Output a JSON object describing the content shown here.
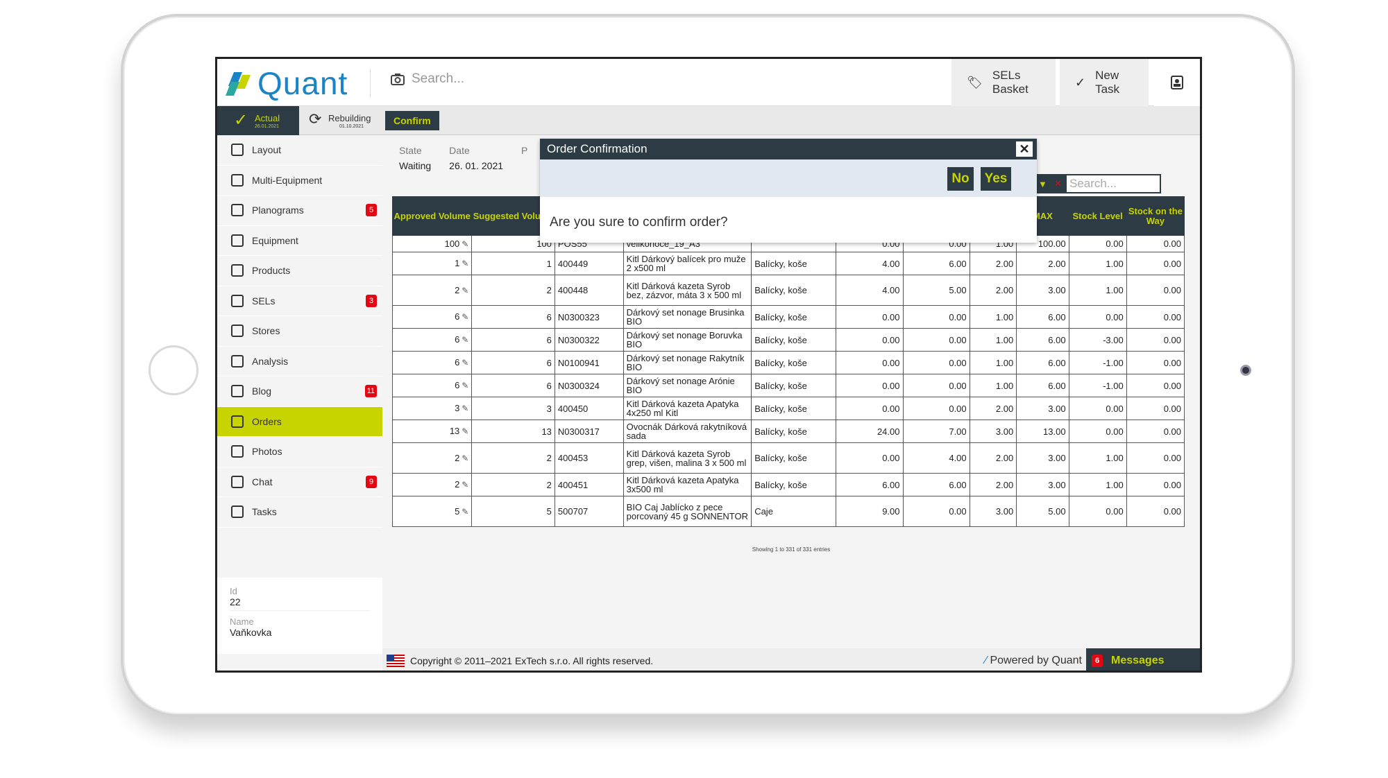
{
  "header": {
    "brand": "Quant",
    "search_placeholder": "Search...",
    "sels_basket": "SELs Basket",
    "new_task": "New Task"
  },
  "status": {
    "actual": "Actual",
    "actual_date": "26.01.2021",
    "rebuilding": "Rebuilding",
    "rebuilding_date": "01.10.2021",
    "confirm": "Confirm"
  },
  "sidebar": {
    "items": [
      {
        "label": "Layout",
        "badge": ""
      },
      {
        "label": "Multi-Equipment",
        "badge": ""
      },
      {
        "label": "Planograms",
        "badge": "5"
      },
      {
        "label": "Equipment",
        "badge": ""
      },
      {
        "label": "Products",
        "badge": ""
      },
      {
        "label": "SELs",
        "badge": "3"
      },
      {
        "label": "Stores",
        "badge": ""
      },
      {
        "label": "Analysis",
        "badge": ""
      },
      {
        "label": "Blog",
        "badge": "11"
      },
      {
        "label": "Orders",
        "badge": ""
      },
      {
        "label": "Photos",
        "badge": ""
      },
      {
        "label": "Chat",
        "badge": "9"
      },
      {
        "label": "Tasks",
        "badge": ""
      }
    ],
    "id_label": "Id",
    "id_value": "22",
    "name_label": "Name",
    "name_value": "Vaňkovka"
  },
  "order": {
    "state_label": "State",
    "state_value": "Waiting",
    "date_label": "Date",
    "date_value": "26. 01. 2021",
    "col3_label": "P",
    "search_placeholder": "Search..."
  },
  "table": {
    "headers": [
      "Approved Volume",
      "Suggested Volume",
      "",
      "",
      "",
      "",
      "",
      "",
      "MAX",
      "Stock Level",
      "Stock on the Way"
    ],
    "rows": [
      [
        "100",
        "100",
        "POS55",
        "velikonoce_19_A3",
        "",
        "0.00",
        "0.00",
        "1.00",
        "100.00",
        "0.00",
        "0.00"
      ],
      [
        "1",
        "1",
        "400449",
        "Kitl Dárkový balícek pro muže 2 x500 ml",
        "Balícky, koše",
        "4.00",
        "6.00",
        "2.00",
        "2.00",
        "1.00",
        "0.00"
      ],
      [
        "2",
        "2",
        "400448",
        "Kitl Dárková kazeta Syrob bez, zázvor, máta 3 x 500 ml",
        "Balícky, koše",
        "4.00",
        "5.00",
        "2.00",
        "3.00",
        "1.00",
        "0.00"
      ],
      [
        "6",
        "6",
        "N0300323",
        "Dárkový set nonage Brusinka BIO",
        "Balícky, koše",
        "0.00",
        "0.00",
        "1.00",
        "6.00",
        "0.00",
        "0.00"
      ],
      [
        "6",
        "6",
        "N0300322",
        "Dárkový set nonage Boruvka BIO",
        "Balícky, koše",
        "0.00",
        "0.00",
        "1.00",
        "6.00",
        "-3.00",
        "0.00"
      ],
      [
        "6",
        "6",
        "N0100941",
        "Dárkový set nonage Rakytník BIO",
        "Balícky, koše",
        "0.00",
        "0.00",
        "1.00",
        "6.00",
        "-1.00",
        "0.00"
      ],
      [
        "6",
        "6",
        "N0300324",
        "Dárkový set nonage Arónie BIO",
        "Balícky, koše",
        "0.00",
        "0.00",
        "1.00",
        "6.00",
        "-1.00",
        "0.00"
      ],
      [
        "3",
        "3",
        "400450",
        "Kitl Dárková kazeta Apatyka 4x250 ml Kitl",
        "Balícky, koše",
        "0.00",
        "0.00",
        "2.00",
        "3.00",
        "0.00",
        "0.00"
      ],
      [
        "13",
        "13",
        "N0300317",
        "Ovocnák Dárková rakytníková sada",
        "Balícky, koše",
        "24.00",
        "7.00",
        "3.00",
        "13.00",
        "0.00",
        "0.00"
      ],
      [
        "2",
        "2",
        "400453",
        "Kitl Dárková kazeta Syrob grep, višen, malina 3 x 500 ml",
        "Balícky, koše",
        "0.00",
        "4.00",
        "2.00",
        "3.00",
        "1.00",
        "0.00"
      ],
      [
        "2",
        "2",
        "400451",
        "Kitl Dárková kazeta Apatyka 3x500 ml",
        "Balícky, koše",
        "6.00",
        "6.00",
        "2.00",
        "3.00",
        "1.00",
        "0.00"
      ],
      [
        "5",
        "5",
        "500707",
        "BIO Caj Jablícko z pece porcovaný 45 g SONNENTOR",
        "Caje",
        "9.00",
        "0.00",
        "3.00",
        "5.00",
        "0.00",
        "0.00"
      ]
    ],
    "showing": "Showing 1 to 331 of 331 entries"
  },
  "footer": {
    "copyright": "Copyright © 2011–2021 ExTech s.r.o. All rights reserved.",
    "powered": "Powered by Quant",
    "messages": "Messages",
    "messages_count": "6"
  },
  "modal": {
    "title": "Order Confirmation",
    "close": "✕",
    "no": "No",
    "yes": "Yes",
    "message": "Are you sure to confirm order?"
  },
  "colors": {
    "accent": "#c8d400",
    "dark": "#2d3b45",
    "brand": "#1a84c7",
    "badge": "#e30613"
  }
}
